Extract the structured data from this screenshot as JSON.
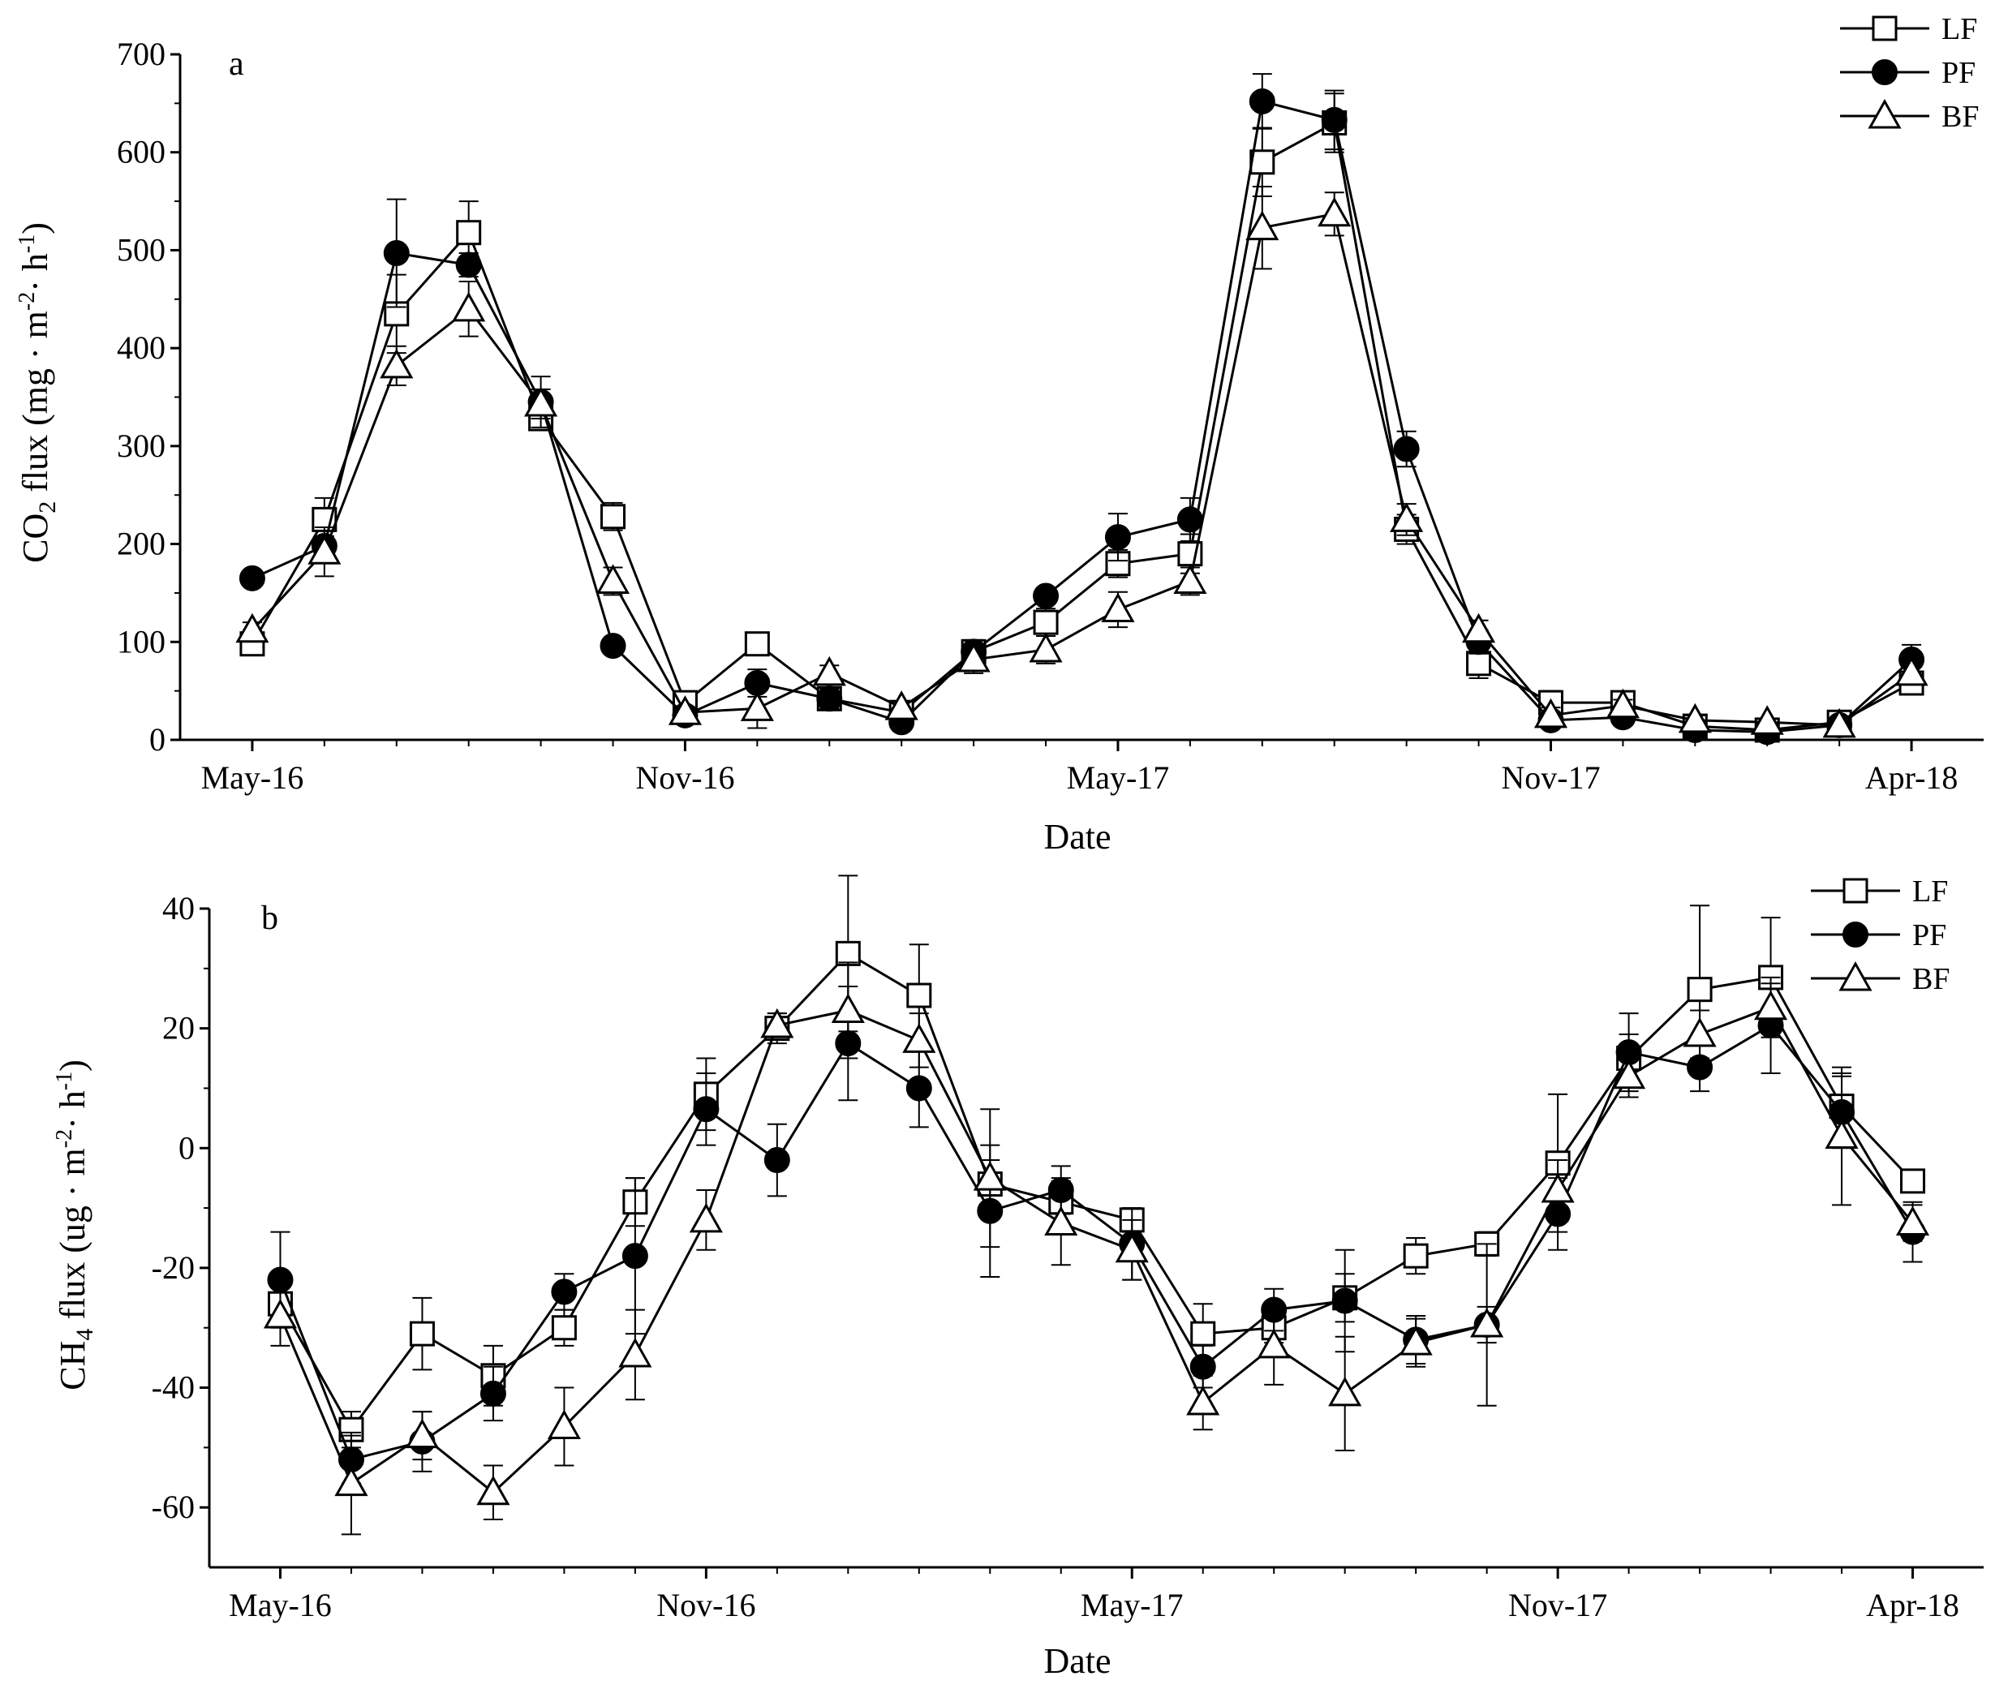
{
  "chart_data": [
    {
      "panel": "a",
      "type": "line",
      "xlabel": "Date",
      "ylabel": {
        "main": "CO",
        "sub": "2",
        "rest": " flux (mg · m",
        "sup1": "-2",
        "mid": "· h",
        "sup2": "-1",
        "end": ")"
      },
      "ylim": [
        0,
        700
      ],
      "yticks": [
        0,
        100,
        200,
        300,
        400,
        500,
        600,
        700
      ],
      "xticks": [
        {
          "label": "May-16",
          "x": 0
        },
        {
          "label": "Nov-16",
          "x": 6
        },
        {
          "label": "May-17",
          "x": 12
        },
        {
          "label": "Nov-17",
          "x": 18
        },
        {
          "label": "Apr-18",
          "x": 23
        }
      ],
      "xlim": [
        -1,
        24
      ],
      "x": [
        0,
        1,
        2,
        3,
        4,
        5,
        6,
        7,
        8,
        9,
        10,
        11,
        12,
        13,
        14,
        15,
        16,
        17,
        18,
        19,
        20,
        21,
        22,
        23
      ],
      "series": [
        {
          "name": "LF",
          "marker": "square-open",
          "values": [
            98,
            225,
            435,
            518,
            328,
            228,
            38,
            98,
            42,
            28,
            90,
            120,
            180,
            190,
            590,
            630,
            215,
            78,
            38,
            38,
            14,
            10,
            18,
            58
          ],
          "errors": [
            6,
            22,
            40,
            32,
            10,
            14,
            10,
            10,
            6,
            6,
            12,
            14,
            14,
            20,
            35,
            30,
            15,
            15,
            12,
            8,
            4,
            4,
            4,
            8
          ]
        },
        {
          "name": "PF",
          "marker": "circle-filled",
          "values": [
            165,
            198,
            497,
            485,
            345,
            96,
            25,
            58,
            42,
            18,
            90,
            147,
            207,
            225,
            652,
            633,
            297,
            100,
            20,
            23,
            10,
            8,
            15,
            82
          ],
          "errors": [
            5,
            10,
            55,
            12,
            26,
            5,
            5,
            14,
            10,
            4,
            8,
            6,
            24,
            22,
            28,
            30,
            18,
            12,
            5,
            4,
            3,
            3,
            4,
            15
          ]
        },
        {
          "name": "BF",
          "marker": "triangle-open",
          "values": [
            112,
            192,
            382,
            440,
            343,
            162,
            28,
            32,
            68,
            33,
            82,
            92,
            133,
            162,
            523,
            537,
            225,
            112,
            25,
            35,
            20,
            18,
            15,
            68
          ],
          "errors": [
            8,
            25,
            20,
            28,
            15,
            14,
            6,
            20,
            8,
            6,
            14,
            14,
            18,
            14,
            42,
            22,
            16,
            10,
            8,
            6,
            5,
            4,
            4,
            8
          ]
        }
      ],
      "legend": {
        "placement": "top-right",
        "entries": [
          "LF",
          "PF",
          "BF"
        ]
      }
    },
    {
      "panel": "b",
      "type": "line",
      "xlabel": "Date",
      "ylabel": {
        "main": "CH",
        "sub": "4",
        "rest": " flux (ug · m",
        "sup1": "-2",
        "mid": "· h",
        "sup2": "-1",
        "end": ")"
      },
      "ylim": [
        -70,
        40
      ],
      "yticks": [
        -60,
        -40,
        -20,
        0,
        20,
        40
      ],
      "xticks": [
        {
          "label": "May-16",
          "x": 0
        },
        {
          "label": "Nov-16",
          "x": 6
        },
        {
          "label": "May-17",
          "x": 12
        },
        {
          "label": "Nov-17",
          "x": 18
        },
        {
          "label": "Apr-18",
          "x": 23
        }
      ],
      "xlim": [
        -1,
        24
      ],
      "x": [
        0,
        1,
        2,
        3,
        4,
        5,
        6,
        7,
        8,
        9,
        10,
        11,
        12,
        13,
        14,
        15,
        16,
        17,
        18,
        19,
        20,
        21,
        22,
        23
      ],
      "series": [
        {
          "name": "LF",
          "marker": "square-open",
          "values": [
            -26,
            -47,
            -31,
            -38,
            -30,
            -9,
            9,
            20,
            32.5,
            25.5,
            -6,
            -9,
            -12,
            -31,
            -30,
            -25,
            -18,
            -16,
            -2.5,
            15,
            26.5,
            28.5,
            7,
            -5.5
          ],
          "errors": [
            3,
            3,
            6,
            5,
            3,
            4,
            6,
            2.5,
            13,
            8.5,
            4,
            4,
            2,
            5,
            2.5,
            4,
            3,
            2,
            11.5,
            4,
            14,
            10,
            5.5,
            1.5
          ]
        },
        {
          "name": "PF",
          "marker": "circle-filled",
          "values": [
            -22,
            -52,
            -49,
            -41,
            -24,
            -18,
            6.5,
            -2,
            17.5,
            10,
            -10.5,
            -7,
            -16,
            -36.5,
            -27,
            -25.5,
            -32,
            -29.5,
            -11,
            16,
            13.5,
            20.5,
            6,
            -14
          ],
          "errors": [
            8,
            4,
            5,
            4.5,
            3,
            13,
            6,
            6,
            9.5,
            6.5,
            11,
            4,
            6,
            3.5,
            3.5,
            8.5,
            4,
            3,
            6,
            6.5,
            4,
            8,
            6,
            5
          ]
        },
        {
          "name": "BF",
          "marker": "triangle-open",
          "values": [
            -28,
            -56,
            -48,
            -57.5,
            -46.5,
            -34.5,
            -12,
            20.5,
            23,
            18,
            -5,
            -12.5,
            -17,
            -42.5,
            -33,
            -41,
            -32.5,
            -29.5,
            -7,
            12,
            19,
            23.5,
            2,
            -12.5
          ],
          "errors": [
            5,
            8.5,
            4,
            4.5,
            6.5,
            7.5,
            5,
            2,
            8,
            4.5,
            11.5,
            7,
            5,
            4.5,
            6.5,
            9.5,
            4,
            13.5,
            5,
            3.5,
            4,
            4,
            11.5,
            3
          ]
        }
      ],
      "legend": {
        "placement": "top-right",
        "entries": [
          "LF",
          "PF",
          "BF"
        ]
      }
    }
  ]
}
